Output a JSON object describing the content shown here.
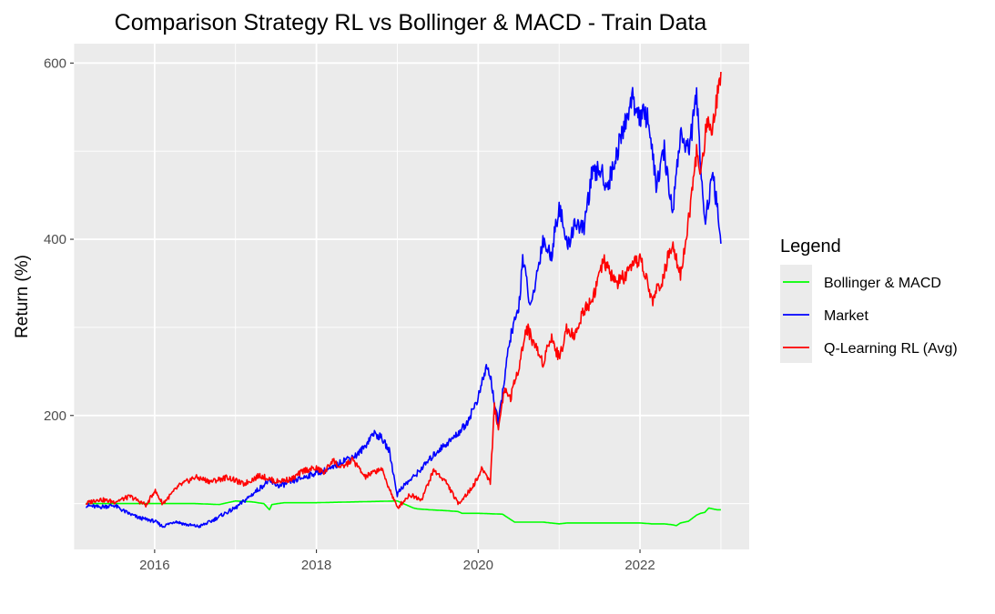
{
  "chart_data": {
    "type": "line",
    "title": "Comparison Strategy RL vs Bollinger & MACD - Train Data",
    "xlabel": "",
    "ylabel": "Return (%)",
    "x_ticks": [
      "2016",
      "2018",
      "2020",
      "2022"
    ],
    "y_ticks": [
      "200",
      "400",
      "600"
    ],
    "xlim": [
      2015.0,
      2023.35
    ],
    "ylim": [
      48,
      622
    ],
    "grid": true,
    "legend": {
      "title": "Legend",
      "position": "right"
    },
    "series": [
      {
        "name": "Bollinger & MACD",
        "color": "#00ff00",
        "x": [
          2015.15,
          2015.6,
          2015.9,
          2016.2,
          2016.5,
          2016.8,
          2017.0,
          2017.2,
          2017.35,
          2017.42,
          2017.45,
          2017.6,
          2018.0,
          2018.5,
          2019.0,
          2019.2,
          2019.25,
          2019.4,
          2019.6,
          2019.75,
          2019.8,
          2020.0,
          2020.3,
          2020.4,
          2020.45,
          2020.6,
          2020.8,
          2021.0,
          2021.1,
          2021.5,
          2022.0,
          2022.15,
          2022.3,
          2022.4,
          2022.45,
          2022.5,
          2022.6,
          2022.7,
          2022.75,
          2022.8,
          2022.85,
          2022.9,
          2022.95,
          2023.0
        ],
        "values": [
          100,
          100,
          100,
          100,
          100,
          99,
          103,
          102,
          100,
          93,
          99,
          101,
          101,
          102,
          103,
          95,
          94,
          93,
          92,
          91,
          89,
          89,
          88,
          82,
          79,
          79,
          79,
          77,
          78,
          78,
          78,
          77,
          77,
          76,
          75,
          78,
          80,
          87,
          89,
          90,
          95,
          94,
          93,
          93
        ]
      },
      {
        "name": "Market",
        "color": "#0000ff",
        "x": [
          2015.15,
          2015.3,
          2015.5,
          2015.65,
          2015.8,
          2016.0,
          2016.1,
          2016.25,
          2016.4,
          2016.55,
          2016.7,
          2016.85,
          2017.0,
          2017.2,
          2017.4,
          2017.55,
          2017.7,
          2017.85,
          2018.0,
          2018.2,
          2018.35,
          2018.5,
          2018.6,
          2018.7,
          2018.8,
          2018.9,
          2019.0,
          2019.05,
          2019.2,
          2019.35,
          2019.5,
          2019.7,
          2019.85,
          2020.0,
          2020.1,
          2020.15,
          2020.2,
          2020.25,
          2020.32,
          2020.4,
          2020.5,
          2020.55,
          2020.65,
          2020.8,
          2020.9,
          2021.0,
          2021.1,
          2021.2,
          2021.3,
          2021.4,
          2021.5,
          2021.6,
          2021.75,
          2021.9,
          2022.0,
          2022.1,
          2022.2,
          2022.3,
          2022.4,
          2022.5,
          2022.6,
          2022.7,
          2022.8,
          2022.9,
          2022.95,
          2023.0
        ],
        "values": [
          98,
          96,
          98,
          90,
          84,
          80,
          74,
          80,
          76,
          74,
          80,
          88,
          95,
          110,
          125,
          120,
          125,
          130,
          135,
          140,
          150,
          155,
          165,
          180,
          175,
          160,
          110,
          118,
          130,
          145,
          160,
          175,
          190,
          220,
          255,
          245,
          215,
          190,
          240,
          290,
          320,
          380,
          320,
          400,
          380,
          440,
          390,
          420,
          410,
          470,
          480,
          460,
          510,
          560,
          540,
          540,
          460,
          500,
          430,
          520,
          500,
          560,
          420,
          470,
          440,
          395
        ]
      },
      {
        "name": "Q-Learning RL (Avg)",
        "color": "#ff0000",
        "x": [
          2015.15,
          2015.3,
          2015.5,
          2015.7,
          2015.9,
          2016.0,
          2016.1,
          2016.3,
          2016.5,
          2016.7,
          2016.9,
          2017.1,
          2017.3,
          2017.5,
          2017.7,
          2017.85,
          2018.0,
          2018.1,
          2018.2,
          2018.3,
          2018.45,
          2018.6,
          2018.8,
          2019.0,
          2019.05,
          2019.15,
          2019.3,
          2019.45,
          2019.6,
          2019.75,
          2019.9,
          2020.0,
          2020.05,
          2020.15,
          2020.2,
          2020.25,
          2020.32,
          2020.4,
          2020.5,
          2020.6,
          2020.7,
          2020.8,
          2020.9,
          2021.0,
          2021.1,
          2021.2,
          2021.3,
          2021.4,
          2021.55,
          2021.7,
          2021.85,
          2022.0,
          2022.15,
          2022.3,
          2022.4,
          2022.5,
          2022.6,
          2022.7,
          2022.75,
          2022.82,
          2022.9,
          2022.95,
          2023.0
        ],
        "values": [
          100,
          105,
          102,
          108,
          98,
          115,
          100,
          120,
          130,
          125,
          130,
          122,
          132,
          125,
          128,
          138,
          140,
          135,
          150,
          140,
          150,
          130,
          140,
          95,
          100,
          110,
          105,
          138,
          125,
          100,
          115,
          130,
          140,
          125,
          210,
          185,
          230,
          220,
          255,
          300,
          280,
          260,
          290,
          265,
          300,
          290,
          320,
          330,
          375,
          350,
          360,
          380,
          330,
          360,
          400,
          360,
          420,
          500,
          470,
          530,
          530,
          560,
          590
        ]
      }
    ]
  }
}
